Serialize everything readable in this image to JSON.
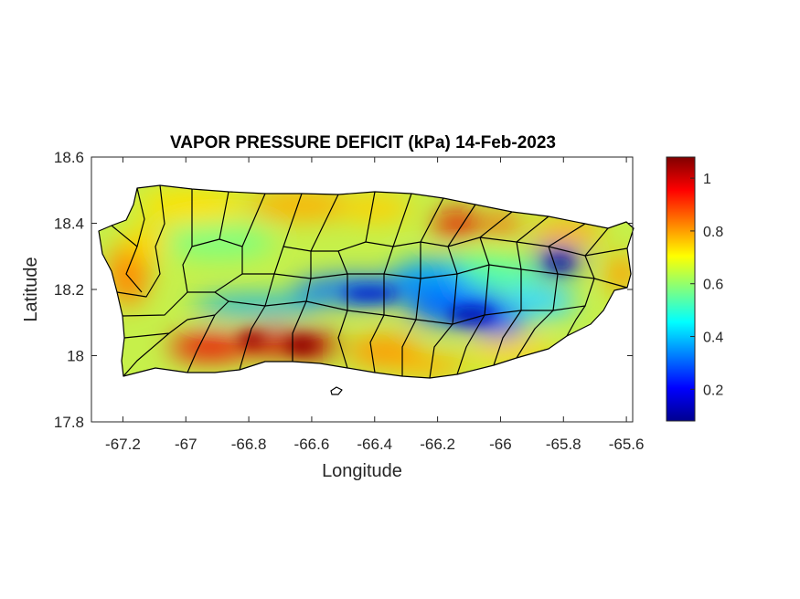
{
  "title": "VAPOR PRESSURE DEFICIT (kPa) 14-Feb-2023",
  "xlabel": "Longitude",
  "ylabel": "Latitude",
  "x_axis": {
    "range": [
      -67.3,
      -65.58
    ],
    "ticks": [
      -67.2,
      -67,
      -66.8,
      -66.6,
      -66.4,
      -66.2,
      -66,
      -65.8,
      -65.6
    ],
    "tick_labels": [
      "-67.2",
      "-67",
      "-66.8",
      "-66.6",
      "-66.4",
      "-66.2",
      "-66",
      "-65.8",
      "-65.6"
    ]
  },
  "y_axis": {
    "range": [
      17.8,
      18.6
    ],
    "ticks": [
      17.8,
      18.0,
      18.2,
      18.4,
      18.6
    ],
    "tick_labels": [
      "17.8",
      "18",
      "18.2",
      "18.4",
      "18.6"
    ]
  },
  "colorbar": {
    "colormap": "jet",
    "range": [
      0.08,
      1.08
    ],
    "ticks": [
      0.2,
      0.4,
      0.6,
      0.8,
      1.0
    ],
    "tick_labels": [
      "0.2",
      "0.4",
      "0.6",
      "0.8",
      "1"
    ]
  },
  "map_data": {
    "region": "Puerto Rico",
    "variable": "vapor pressure deficit",
    "units": "kPa",
    "date": "14-Feb-2023",
    "features": [
      {
        "description": "high VPD band along southern coast",
        "lon": -66.75,
        "lat": 18.03,
        "value": 1.05
      },
      {
        "description": "high VPD southwest",
        "lon": -66.95,
        "lat": 18.02,
        "value": 1.0
      },
      {
        "description": "high VPD north-central coast",
        "lon": -66.12,
        "lat": 18.4,
        "value": 0.95
      },
      {
        "description": "low VPD central mountain band",
        "lon": -66.45,
        "lat": 18.17,
        "value": 0.25
      },
      {
        "description": "low VPD east-central",
        "lon": -66.05,
        "lat": 18.09,
        "value": 0.2
      },
      {
        "description": "low VPD El Yunque area",
        "lon": -65.8,
        "lat": 18.28,
        "value": 0.15
      }
    ]
  }
}
